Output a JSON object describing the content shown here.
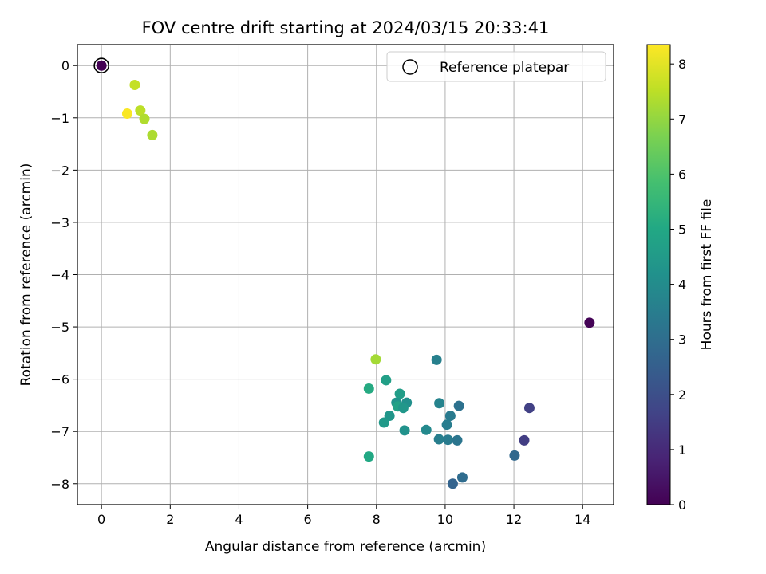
{
  "chart_data": {
    "type": "scatter",
    "title": "FOV centre drift starting at 2024/03/15 20:33:41",
    "xlabel": "Angular distance from reference (arcmin)",
    "ylabel": "Rotation from reference (arcmin)",
    "xlim": [
      -0.7,
      14.9
    ],
    "ylim": [
      -8.4,
      0.4
    ],
    "xticks": [
      0,
      2,
      4,
      6,
      8,
      10,
      12,
      14
    ],
    "yticks": [
      0,
      -1,
      -2,
      -3,
      -4,
      -5,
      -6,
      -7,
      -8
    ],
    "xtick_labels": [
      "0",
      "2",
      "4",
      "6",
      "8",
      "10",
      "12",
      "14"
    ],
    "ytick_labels": [
      "0",
      "−1",
      "−2",
      "−3",
      "−4",
      "−5",
      "−6",
      "−7",
      "−8"
    ],
    "grid": true,
    "colormap": "viridis",
    "colorbar": {
      "label": "Hours from first FF file",
      "range": [
        0,
        8.35
      ],
      "ticks": [
        0,
        1,
        2,
        3,
        4,
        5,
        6,
        7,
        8
      ],
      "tick_labels": [
        "0",
        "1",
        "2",
        "3",
        "4",
        "5",
        "6",
        "7",
        "8"
      ]
    },
    "legend": {
      "placement": "top-right",
      "entries": [
        "Reference platepar"
      ]
    },
    "reference_point": {
      "x": 0,
      "y": 0
    },
    "points": [
      {
        "x": 0.0,
        "y": 0.0,
        "hours": 0.0
      },
      {
        "x": 0.75,
        "y": -0.92,
        "hours": 8.3
      },
      {
        "x": 0.97,
        "y": -0.37,
        "hours": 7.6
      },
      {
        "x": 1.13,
        "y": -0.86,
        "hours": 7.5
      },
      {
        "x": 1.25,
        "y": -1.02,
        "hours": 7.35
      },
      {
        "x": 1.48,
        "y": -1.33,
        "hours": 7.3
      },
      {
        "x": 14.2,
        "y": -4.92,
        "hours": 0.05
      },
      {
        "x": 7.98,
        "y": -5.62,
        "hours": 7.2
      },
      {
        "x": 7.78,
        "y": -6.18,
        "hours": 5.1
      },
      {
        "x": 8.28,
        "y": -6.02,
        "hours": 4.7
      },
      {
        "x": 8.68,
        "y": -6.28,
        "hours": 4.6
      },
      {
        "x": 8.58,
        "y": -6.45,
        "hours": 4.3
      },
      {
        "x": 8.88,
        "y": -6.45,
        "hours": 4.15
      },
      {
        "x": 8.62,
        "y": -6.52,
        "hours": 4.75
      },
      {
        "x": 8.78,
        "y": -6.55,
        "hours": 4.4
      },
      {
        "x": 8.38,
        "y": -6.7,
        "hours": 4.35
      },
      {
        "x": 8.22,
        "y": -6.83,
        "hours": 4.45
      },
      {
        "x": 8.82,
        "y": -6.98,
        "hours": 4.2
      },
      {
        "x": 7.78,
        "y": -7.48,
        "hours": 5.0
      },
      {
        "x": 9.75,
        "y": -5.63,
        "hours": 3.6
      },
      {
        "x": 9.83,
        "y": -6.46,
        "hours": 3.7
      },
      {
        "x": 10.4,
        "y": -6.51,
        "hours": 3.1
      },
      {
        "x": 10.15,
        "y": -6.7,
        "hours": 3.4
      },
      {
        "x": 10.05,
        "y": -6.87,
        "hours": 3.5
      },
      {
        "x": 9.45,
        "y": -6.97,
        "hours": 3.9
      },
      {
        "x": 9.82,
        "y": -7.15,
        "hours": 3.55
      },
      {
        "x": 10.08,
        "y": -7.16,
        "hours": 3.45
      },
      {
        "x": 10.35,
        "y": -7.17,
        "hours": 3.25
      },
      {
        "x": 10.5,
        "y": -7.88,
        "hours": 2.95
      },
      {
        "x": 10.22,
        "y": -8.0,
        "hours": 2.65
      },
      {
        "x": 12.02,
        "y": -7.46,
        "hours": 2.8
      },
      {
        "x": 12.45,
        "y": -6.55,
        "hours": 1.6
      },
      {
        "x": 12.3,
        "y": -7.17,
        "hours": 1.5
      }
    ]
  }
}
